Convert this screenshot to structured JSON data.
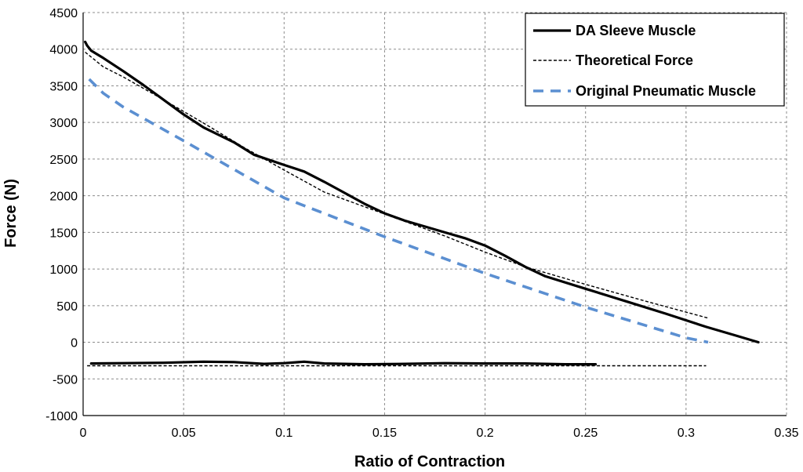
{
  "chart_data": {
    "type": "line",
    "title": "",
    "xlabel": "Ratio of Contraction",
    "ylabel": "Force (N)",
    "xlim": [
      0,
      0.35
    ],
    "ylim": [
      -1000,
      4500
    ],
    "xticks": [
      0,
      0.05,
      0.1,
      0.15,
      0.2,
      0.25,
      0.3,
      0.35
    ],
    "xtick_labels": [
      "0",
      "0.05",
      "0.1",
      "0.15",
      "0.2",
      "0.25",
      "0.3",
      "0.35"
    ],
    "yticks": [
      -1000,
      -500,
      0,
      500,
      1000,
      1500,
      2000,
      2500,
      3000,
      3500,
      4000,
      4500
    ],
    "ytick_labels": [
      "-1000",
      "-500",
      "0",
      "500",
      "1000",
      "1500",
      "2000",
      "2500",
      "3000",
      "3500",
      "4000",
      "4500"
    ],
    "grid": true,
    "legend_position": "top-right",
    "series": [
      {
        "name": "DA Sleeve Muscle",
        "color": "#000000",
        "style": "solid-thick",
        "segments": [
          {
            "x": [
              0.001,
              0.002,
              0.004,
              0.01,
              0.02,
              0.03,
              0.04,
              0.05,
              0.06,
              0.075,
              0.085,
              0.1,
              0.11,
              0.12,
              0.13,
              0.14,
              0.15,
              0.16,
              0.17,
              0.18,
              0.19,
              0.2,
              0.21,
              0.22,
              0.23,
              0.25,
              0.27,
              0.29,
              0.31,
              0.325,
              0.336
            ],
            "y": [
              4100,
              4050,
              3980,
              3880,
              3700,
              3510,
              3310,
              3110,
              2930,
              2730,
              2560,
              2420,
              2330,
              2190,
              2040,
              1890,
              1760,
              1660,
              1580,
              1500,
              1420,
              1320,
              1180,
              1030,
              900,
              730,
              560,
              390,
              210,
              90,
              0
            ]
          },
          {
            "x": [
              0.004,
              0.02,
              0.04,
              0.06,
              0.075,
              0.09,
              0.1,
              0.11,
              0.12,
              0.14,
              0.16,
              0.18,
              0.2,
              0.22,
              0.24,
              0.255
            ],
            "y": [
              -290,
              -285,
              -280,
              -265,
              -270,
              -295,
              -285,
              -265,
              -290,
              -300,
              -295,
              -285,
              -290,
              -290,
              -300,
              -300
            ]
          }
        ]
      },
      {
        "name": "Theoretical Force",
        "color": "#000000",
        "style": "dashed-thin",
        "segments": [
          {
            "x": [
              0.001,
              0.01,
              0.02,
              0.04,
              0.06,
              0.08,
              0.1,
              0.12,
              0.15,
              0.18,
              0.2,
              0.22,
              0.25,
              0.28,
              0.311
            ],
            "y": [
              3960,
              3760,
              3620,
              3310,
              2990,
              2660,
              2350,
              2050,
              1750,
              1450,
              1230,
              1030,
              790,
              560,
              330
            ]
          },
          {
            "x": [
              0.002,
              0.05,
              0.1,
              0.15,
              0.2,
              0.25,
              0.31
            ],
            "y": [
              -320,
              -320,
              -320,
              -320,
              -320,
              -320,
              -320
            ]
          }
        ]
      },
      {
        "name": "Original Pneumatic Muscle",
        "color": "#5b8fd1",
        "style": "dashed-thick",
        "segments": [
          {
            "x": [
              0.003,
              0.01,
              0.02,
              0.05,
              0.1,
              0.15,
              0.2,
              0.25,
              0.3,
              0.311
            ],
            "y": [
              3590,
              3400,
              3210,
              2750,
              1970,
              1440,
              940,
              480,
              60,
              0
            ]
          }
        ]
      }
    ]
  }
}
